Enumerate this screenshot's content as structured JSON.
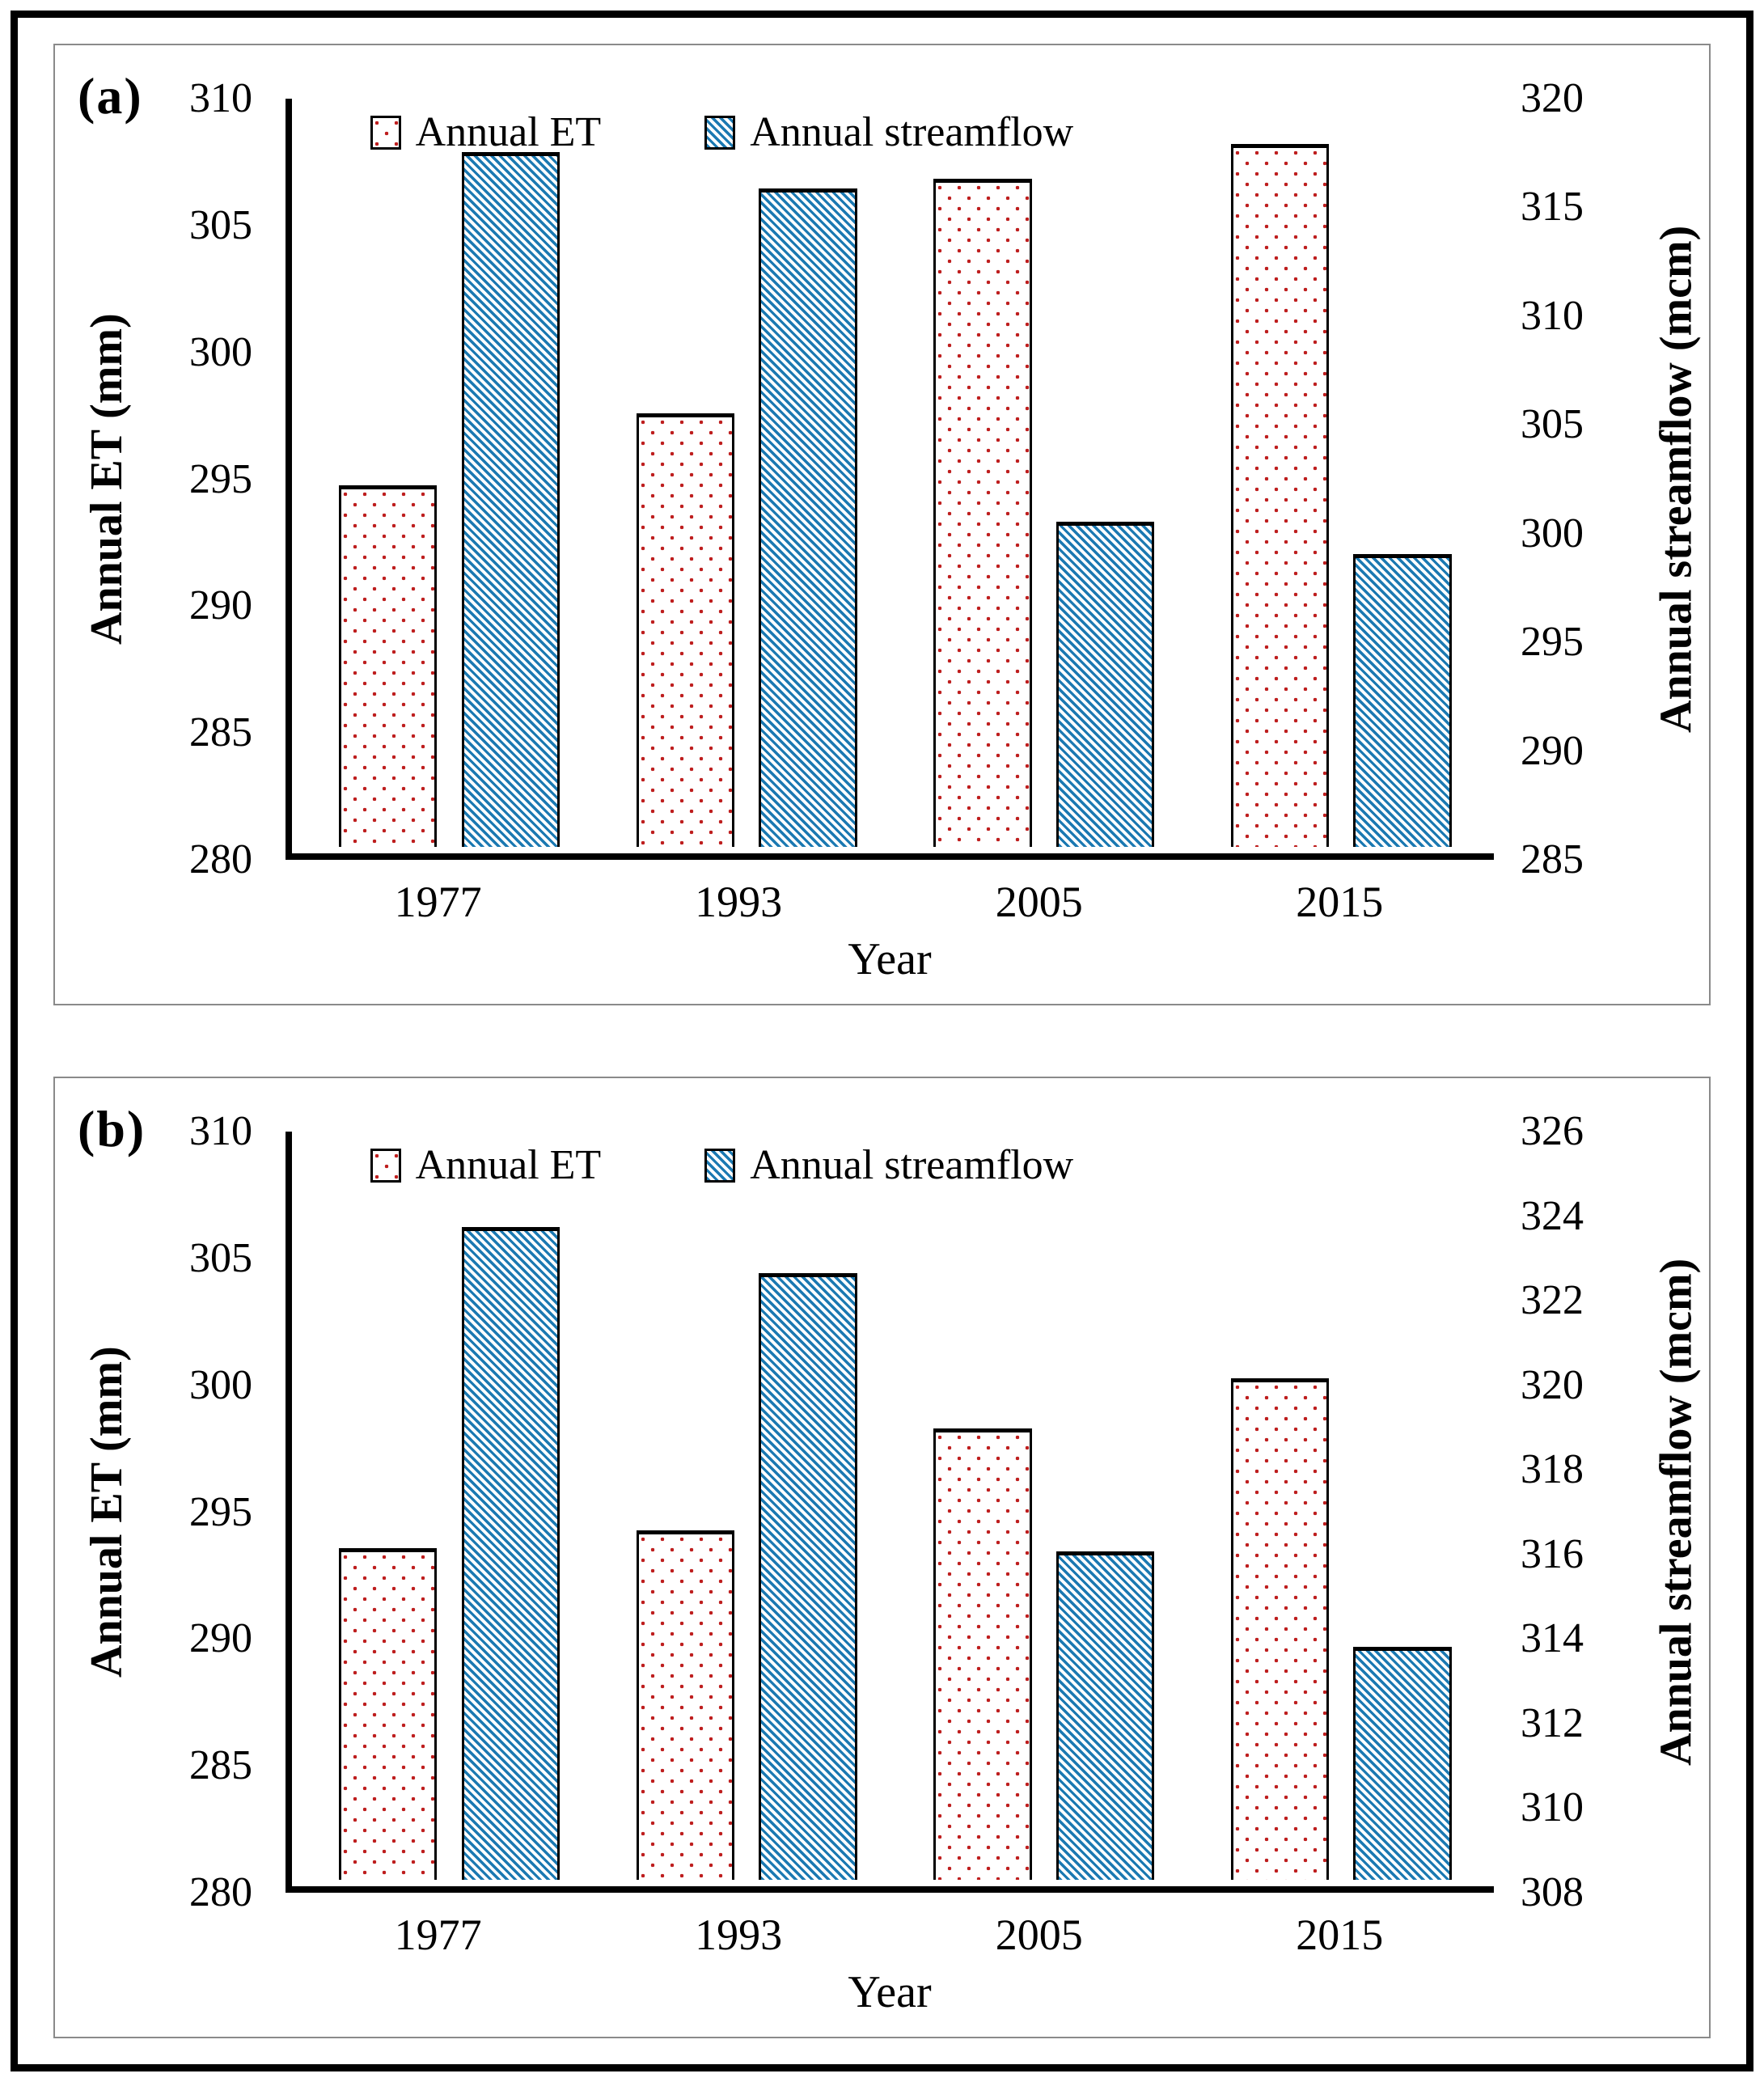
{
  "figure": {
    "panels": [
      {
        "label": "(a)",
        "legend": [
          "Annual ET",
          "Annual streamflow"
        ],
        "ylabel_left": "Annual ET (mm)",
        "ylabel_right": "Annual streamflow (mcm)",
        "xlabel": "Year"
      },
      {
        "label": "(b)",
        "legend": [
          "Annual ET",
          "Annual streamflow"
        ],
        "ylabel_left": "Annual ET (mm)",
        "ylabel_right": "Annual streamflow (mcm)",
        "xlabel": "Year"
      }
    ]
  },
  "chart_data": [
    {
      "type": "bar",
      "panel": "(a)",
      "title": "",
      "categories": [
        "1977",
        "1993",
        "2005",
        "2015"
      ],
      "series": [
        {
          "name": "Annual ET",
          "axis": "left",
          "pattern": "red-dots",
          "values": [
            294.5,
            297.4,
            306.8,
            308.2
          ]
        },
        {
          "name": "Annual streamflow",
          "axis": "right",
          "pattern": "blue-hatch",
          "values": [
            317.5,
            315.8,
            300.2,
            298.7
          ]
        }
      ],
      "xlabel": "Year",
      "ylabel_left": "Annual ET (mm)",
      "ylabel_right": "Annual streamflow (mcm)",
      "y_left": {
        "min": 280,
        "max": 310,
        "step": 5
      },
      "y_right": {
        "min": 285,
        "max": 320,
        "step": 5
      },
      "grid": false,
      "legend_position": "top-inside"
    },
    {
      "type": "bar",
      "panel": "(b)",
      "title": "",
      "categories": [
        "1977",
        "1993",
        "2005",
        "2015"
      ],
      "series": [
        {
          "name": "Annual ET",
          "axis": "left",
          "pattern": "red-dots",
          "values": [
            293.3,
            294.0,
            298.1,
            300.1
          ]
        },
        {
          "name": "Annual streamflow",
          "axis": "right",
          "pattern": "blue-hatch",
          "values": [
            323.7,
            322.6,
            315.9,
            313.6
          ]
        }
      ],
      "xlabel": "Year",
      "ylabel_left": "Annual ET (mm)",
      "ylabel_right": "Annual streamflow (mcm)",
      "y_left": {
        "min": 280,
        "max": 310,
        "step": 5
      },
      "y_right": {
        "min": 308,
        "max": 326,
        "step": 2
      },
      "grid": false,
      "legend_position": "top-inside"
    }
  ],
  "colors": {
    "et_dot": "#BE1E1E",
    "sf_hatch": "#1B79B2",
    "bar_border": "#000000",
    "axis_line": "#000000",
    "panel_border": "#8A8A8A",
    "outer_frame": "#000000",
    "background": "#FFFFFF"
  },
  "icons": {
    "et_swatch": "red-dotted-square",
    "sf_swatch": "blue-hatched-square"
  }
}
